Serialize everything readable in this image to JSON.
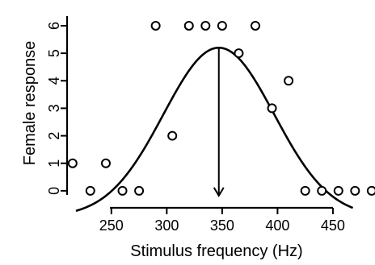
{
  "chart_data": {
    "type": "scatter",
    "xlabel": "Stimulus frequency (Hz)",
    "ylabel": "Female response",
    "xlim": [
      210,
      488
    ],
    "ylim": [
      -0.15,
      6.35
    ],
    "x_ticks": [
      250,
      300,
      350,
      400,
      450
    ],
    "y_ticks": [
      0,
      1,
      2,
      3,
      4,
      5,
      6
    ],
    "grid": false,
    "legend": "none",
    "points": [
      {
        "x": 215,
        "y": 1
      },
      {
        "x": 231,
        "y": 0
      },
      {
        "x": 245,
        "y": 1
      },
      {
        "x": 260,
        "y": 0
      },
      {
        "x": 275,
        "y": 0
      },
      {
        "x": 290,
        "y": 6
      },
      {
        "x": 305,
        "y": 2
      },
      {
        "x": 320,
        "y": 6
      },
      {
        "x": 335,
        "y": 6
      },
      {
        "x": 350,
        "y": 6
      },
      {
        "x": 365,
        "y": 5
      },
      {
        "x": 380,
        "y": 6
      },
      {
        "x": 395,
        "y": 3
      },
      {
        "x": 410,
        "y": 4
      },
      {
        "x": 425,
        "y": 0
      },
      {
        "x": 440,
        "y": 0
      },
      {
        "x": 455,
        "y": 0
      },
      {
        "x": 470,
        "y": 0
      },
      {
        "x": 485,
        "y": 0
      }
    ],
    "fit_curve": {
      "type": "gaussian",
      "peak_x": 347,
      "peak_y": 5.2,
      "sigma": 50,
      "offset": -0.95,
      "x_range": [
        218,
        468
      ]
    },
    "peak_marker": {
      "x": 347,
      "y_top": 5.2,
      "y_bottom": 0
    }
  }
}
